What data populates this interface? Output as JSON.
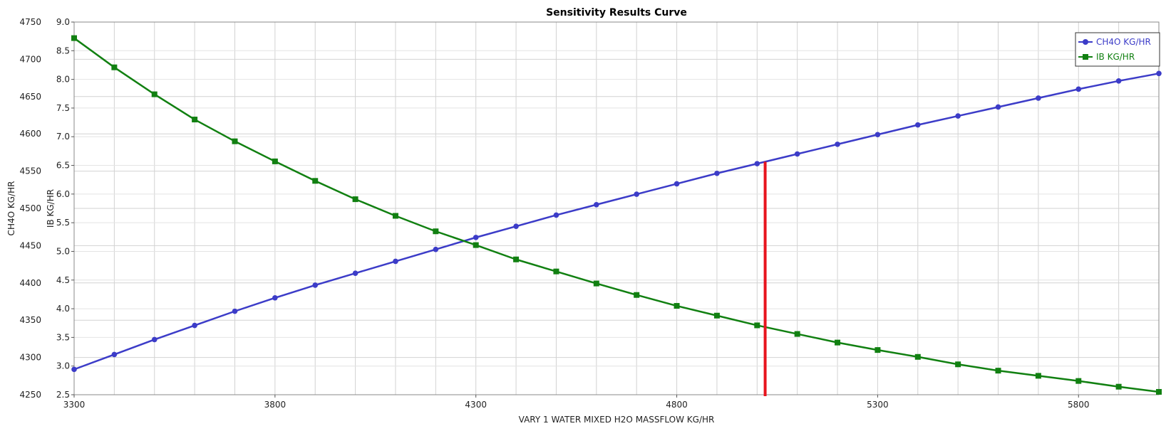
{
  "chart_data": {
    "type": "line",
    "title": "Sensitivity Results Curve",
    "xlabel": "VARY   1 WATER MIXED H2O MASSFLOW KG/HR",
    "ylabel_left": "CH4O KG/HR",
    "ylabel_right": "IB KG/HR",
    "xlim": [
      3300,
      6000
    ],
    "ylim_left": [
      4250,
      4750
    ],
    "ylim_right": [
      2.5,
      9.0
    ],
    "x_ticks": [
      "3300",
      "3800",
      "4300",
      "4800",
      "5300",
      "5800"
    ],
    "y_left_ticks": [
      "4250",
      "4300",
      "4350",
      "4400",
      "4450",
      "4500",
      "4550",
      "4600",
      "4650",
      "4700",
      "4750"
    ],
    "y_right_ticks": [
      "2.5",
      "3.0",
      "3.5",
      "4.0",
      "4.5",
      "5.0",
      "5.5",
      "6.0",
      "6.5",
      "7.0",
      "7.5",
      "8.0",
      "8.5",
      "9.0"
    ],
    "grid": true,
    "legend_position": "top-right",
    "x": [
      3300,
      3400,
      3500,
      3600,
      3700,
      3800,
      3900,
      4000,
      4100,
      4200,
      4300,
      4400,
      4500,
      4600,
      4700,
      4800,
      4900,
      5000,
      5100,
      5200,
      5300,
      5400,
      5500,
      5600,
      5700,
      5800,
      5900,
      6000
    ],
    "series": [
      {
        "name": "CH4O KG/HR",
        "axis": "left",
        "color": "#3c3cc8",
        "marker": "circle",
        "values": [
          4284,
          4304,
          4324,
          4343,
          4362,
          4380,
          4397,
          4413,
          4429,
          4445,
          4461,
          4476,
          4491,
          4505,
          4519,
          4533,
          4547,
          4560,
          4573,
          4586,
          4599,
          4612,
          4624,
          4636,
          4648,
          4660,
          4671,
          4681
        ]
      },
      {
        "name": "IB KG/HR",
        "axis": "right",
        "color": "#118011",
        "marker": "square",
        "values": [
          8.72,
          8.21,
          7.74,
          7.3,
          6.92,
          6.57,
          6.23,
          5.91,
          5.62,
          5.35,
          5.11,
          4.86,
          4.65,
          4.44,
          4.24,
          4.05,
          3.88,
          3.71,
          3.56,
          3.41,
          3.28,
          3.16,
          3.03,
          2.92,
          2.83,
          2.74,
          2.64,
          2.55
        ]
      }
    ],
    "marker_line": {
      "x": 5020,
      "color": "#e8141e"
    }
  }
}
